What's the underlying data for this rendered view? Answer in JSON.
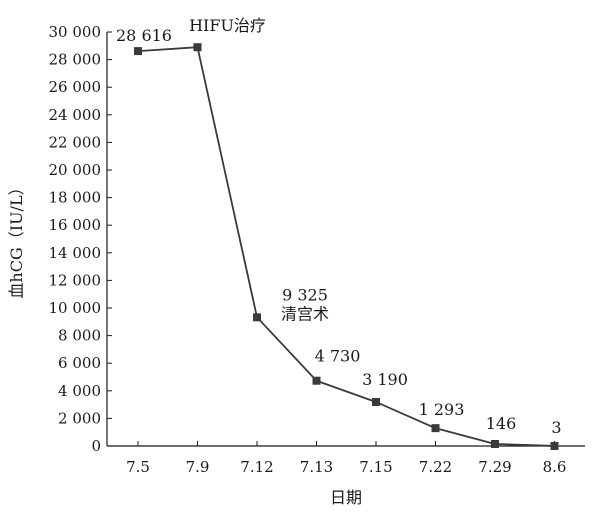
{
  "chart_data": {
    "type": "line",
    "title": "",
    "xlabel": "日期",
    "ylabel": "血hCG（IU/L）",
    "ylim": [
      0,
      30000
    ],
    "yticks": [
      0,
      2000,
      4000,
      6000,
      8000,
      10000,
      12000,
      14000,
      16000,
      18000,
      20000,
      22000,
      24000,
      26000,
      28000,
      30000
    ],
    "ytick_labels": [
      "0",
      "2 000",
      "4 000",
      "6 000",
      "8 000",
      "10 000",
      "12 000",
      "14 000",
      "16 000",
      "18 000",
      "20 000",
      "22 000",
      "24 000",
      "26 000",
      "28 000",
      "30 000"
    ],
    "categories": [
      "7.5",
      "7.9",
      "7.12",
      "7.13",
      "7.15",
      "7.22",
      "7.29",
      "8.6"
    ],
    "series": [
      {
        "values": [
          28616,
          28900,
          9325,
          4730,
          3190,
          1293,
          146,
          3
        ],
        "data_labels": [
          "28 616",
          "",
          "9 325",
          "4 730",
          "3 190",
          "1 293",
          "146",
          "3"
        ]
      }
    ],
    "annotations": [
      {
        "text": "HIFU治疗",
        "category": "7.9"
      },
      {
        "text": "清宫术",
        "category": "7.12"
      }
    ],
    "grid": false,
    "legend": "none",
    "colors": {
      "line": "#3a3a3a",
      "marker": "#3a3a3a",
      "axis": "#1a1a1a"
    }
  }
}
